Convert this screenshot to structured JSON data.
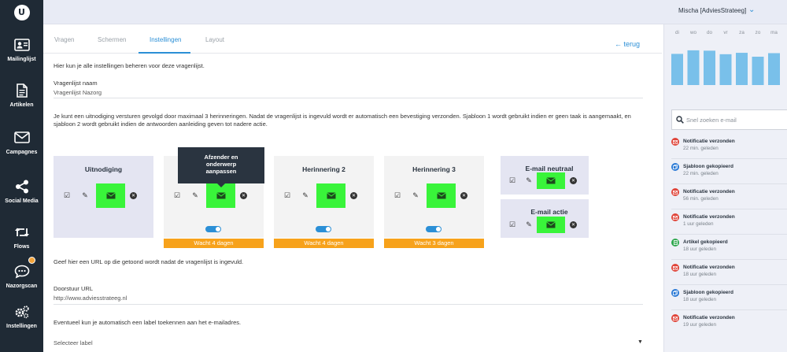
{
  "header": {
    "user_name": "Mischa [AdviesStrateeg]"
  },
  "sidebar": {
    "items": [
      {
        "label": "Mailinglijst",
        "icon": "contact-card-icon"
      },
      {
        "label": "Artikelen",
        "icon": "document-icon"
      },
      {
        "label": "Campagnes",
        "icon": "envelope-icon"
      },
      {
        "label": "Social Media",
        "icon": "share-icon"
      },
      {
        "label": "Flows",
        "icon": "retweet-icon"
      },
      {
        "label": "Nazorgscan",
        "icon": "chat-bubble-icon"
      },
      {
        "label": "Instellingen",
        "icon": "gears-icon"
      }
    ]
  },
  "tabs": [
    {
      "label": "Vragen",
      "active": false
    },
    {
      "label": "Schermen",
      "active": false
    },
    {
      "label": "Instellingen",
      "active": true
    },
    {
      "label": "Layout",
      "active": false
    }
  ],
  "back_label": "terug",
  "intro": "Hier kun je alle instellingen beheren voor deze vragenlijst.",
  "name_field": {
    "label": "Vragenlijst naam",
    "value": "Vragenlijst Nazorg"
  },
  "invite_text": "Je kunt een uitnodiging versturen gevolgd door maximaal 3 herinneringen. Nadat de vragenlijst is ingevuld wordt er automatisch een bevestiging verzonden. Sjabloon 1 wordt gebruikt indien er geen taak is aangemaakt, en sjabloon 2 wordt gebruikt indien de antwoorden aanleiding geven tot nadere actie.",
  "cards": [
    {
      "title": "Uitnodiging",
      "toggle": false,
      "wait": ""
    },
    {
      "title": "",
      "toggle": true,
      "wait": "Wacht 4 dagen"
    },
    {
      "title": "Herinnering 2",
      "toggle": true,
      "wait": "Wacht 4 dagen"
    },
    {
      "title": "Herinnering 3",
      "toggle": true,
      "wait": "Wacht 3 dagen"
    }
  ],
  "confirm_cards": [
    {
      "title": "E-mail neutraal"
    },
    {
      "title": "E-mail actie"
    }
  ],
  "tooltip": {
    "line1": "Afzender en",
    "line2": "onderwerp",
    "line3": "aanpassen"
  },
  "url_intro": "Geef hier een URL op die getoond wordt nadat de vragenlijst is ingevuld.",
  "url_field": {
    "label": "Doorstuur URL",
    "value": "http://www.adviesstrateeg.nl"
  },
  "label_intro": "Eventueel kun je automatisch een label toekennen aan het e-mailadres.",
  "label_select": {
    "value": "Selecteer label"
  },
  "week": {
    "days": [
      "di",
      "wo",
      "do",
      "vr",
      "za",
      "zo",
      "ma"
    ],
    "values": [
      0.88,
      0.98,
      0.97,
      0.87,
      0.91,
      0.8,
      0.9
    ],
    "bar_color": "#79c0ea"
  },
  "search": {
    "placeholder": "Snel zoeken e-mail"
  },
  "activity": [
    {
      "title": "Notificatie verzonden",
      "time": "22 min. geleden",
      "icon": "envelope-icon",
      "color": "#e0453a"
    },
    {
      "title": "Sjabloon gekopieerd",
      "time": "22 min. geleden",
      "icon": "copy-icon",
      "color": "#2b7ad6"
    },
    {
      "title": "Notificatie verzonden",
      "time": "56 min. geleden",
      "icon": "envelope-icon",
      "color": "#e0453a"
    },
    {
      "title": "Notificatie verzonden",
      "time": "1 uur geleden",
      "icon": "envelope-icon",
      "color": "#e0453a"
    },
    {
      "title": "Artikel gekopieerd",
      "time": "18 uur geleden",
      "icon": "document-icon",
      "color": "#2fa84f"
    },
    {
      "title": "Notificatie verzonden",
      "time": "18 uur geleden",
      "icon": "envelope-icon",
      "color": "#e0453a"
    },
    {
      "title": "Sjabloon gekopieerd",
      "time": "18 uur geleden",
      "icon": "copy-icon",
      "color": "#2b7ad6"
    },
    {
      "title": "Notificatie verzonden",
      "time": "19 uur geleden",
      "icon": "envelope-icon",
      "color": "#e0453a"
    }
  ]
}
